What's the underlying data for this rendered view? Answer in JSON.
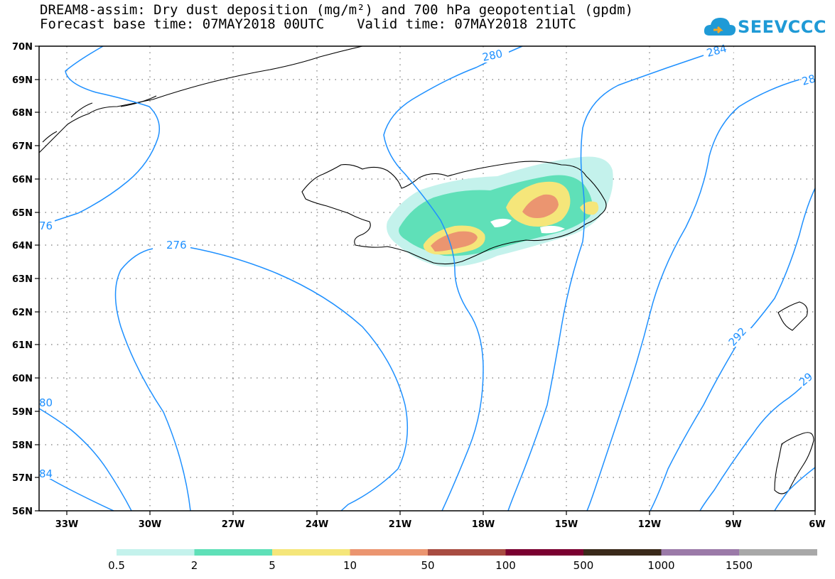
{
  "header": {
    "title_line1": "DREAM8-assim: Dry dust deposition (mg/m²) and 700 hPa geopotential (gpdm)",
    "title_line2": "Forecast base time: 07MAY2018 00UTC    Valid time: 07MAY2018 21UTC"
  },
  "logo": {
    "text": "SEEVCCC",
    "icon": "cloud-icon",
    "color": "#1f9ad6"
  },
  "map": {
    "lat_ticks": [
      "70N",
      "69N",
      "68N",
      "67N",
      "66N",
      "65N",
      "64N",
      "63N",
      "62N",
      "61N",
      "60N",
      "59N",
      "58N",
      "57N",
      "56N"
    ],
    "lon_ticks": [
      "33W",
      "30W",
      "27W",
      "24W",
      "21W",
      "18W",
      "15W",
      "12W",
      "9W",
      "6W"
    ],
    "contour_labels": [
      "280",
      "284",
      "28",
      "276",
      "76",
      "292",
      "29",
      "80",
      "84"
    ],
    "contour_color": "#1e90ff"
  },
  "legend": {
    "colors": [
      "#c4f2ec",
      "#5fe0b8",
      "#f5e67a",
      "#eb9570",
      "#a84c42",
      "#7a0030",
      "#3a2a1a",
      "#9b7aa8",
      "#a8a8a8"
    ],
    "labels": [
      "0.5",
      "2",
      "5",
      "10",
      "50",
      "100",
      "500",
      "1000",
      "1500"
    ]
  }
}
